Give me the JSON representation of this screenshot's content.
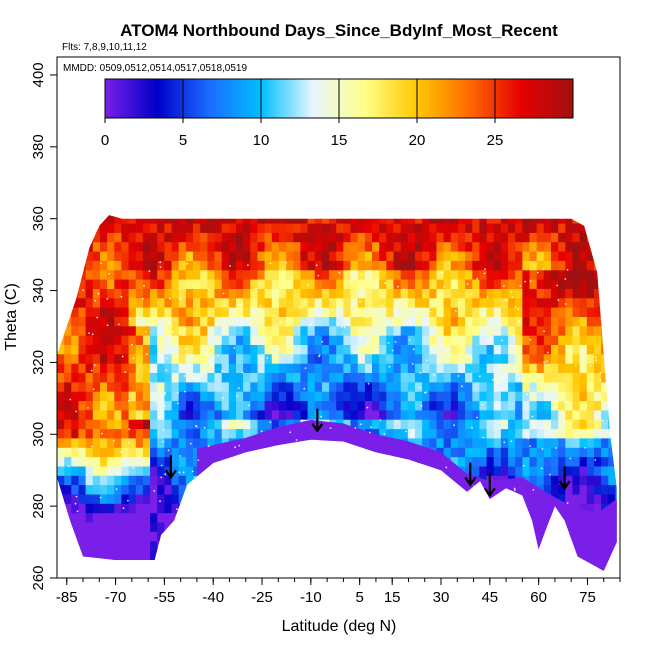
{
  "chart_data": {
    "type": "heatmap",
    "title": "ATOM4 Northbound Days_Since_BdyInf_Most_Recent",
    "subtitle": "Flts: 7,8,9,10,11,12",
    "annotation": "MMDD: 0509,0512,0514,0517,0518,0519",
    "xlabel": "Latitude (deg N)",
    "ylabel": "Theta (C)",
    "xlim": [
      -88,
      85
    ],
    "ylim": [
      260,
      405
    ],
    "x_ticks": [
      "-85",
      "-70",
      "-55",
      "-40",
      "-25",
      "-10",
      "5",
      "15",
      "30",
      "45",
      "60",
      "75"
    ],
    "y_ticks": [
      "260",
      "280",
      "300",
      "320",
      "340",
      "360",
      "380",
      "400"
    ],
    "colorbar": {
      "range": [
        0,
        30
      ],
      "ticks": [
        "0",
        "5",
        "10",
        "15",
        "20",
        "25"
      ],
      "colors": [
        "#7a1fe8",
        "#0000c8",
        "#1a6cff",
        "#00bfff",
        "#e8f6ff",
        "#ffff88",
        "#ffc800",
        "#ff6a00",
        "#e60000",
        "#a01010"
      ]
    },
    "arrows": [
      {
        "lat": -53,
        "theta": 288
      },
      {
        "lat": -8,
        "theta": 301
      },
      {
        "lat": 39,
        "theta": 286
      },
      {
        "lat": 45,
        "theta": 283
      },
      {
        "lat": 68,
        "theta": 285
      }
    ],
    "coverage_top": [
      [
        -88,
        322
      ],
      [
        -82,
        338
      ],
      [
        -78,
        352
      ],
      [
        -75,
        358
      ],
      [
        -72,
        361
      ],
      [
        -68,
        360
      ],
      [
        -60,
        360
      ],
      [
        -40,
        360
      ],
      [
        -20,
        360
      ],
      [
        0,
        360
      ],
      [
        20,
        360
      ],
      [
        40,
        360
      ],
      [
        60,
        360
      ],
      [
        70,
        360
      ],
      [
        74,
        358
      ],
      [
        78,
        345
      ],
      [
        80,
        322
      ],
      [
        82,
        300
      ],
      [
        84,
        285
      ]
    ],
    "coverage_bottom": [
      [
        -88,
        288
      ],
      [
        -84,
        276
      ],
      [
        -80,
        266
      ],
      [
        -70,
        265
      ],
      [
        -58,
        265
      ],
      [
        -56,
        272
      ],
      [
        -52,
        276
      ],
      [
        -48,
        286
      ],
      [
        -40,
        292
      ],
      [
        -30,
        295
      ],
      [
        -20,
        297
      ],
      [
        -10,
        298.5
      ],
      [
        0,
        298
      ],
      [
        10,
        295
      ],
      [
        20,
        293
      ],
      [
        30,
        290
      ],
      [
        38,
        284
      ],
      [
        42,
        287
      ],
      [
        45,
        282
      ],
      [
        50,
        285
      ],
      [
        55,
        283
      ],
      [
        58,
        276
      ],
      [
        60,
        268
      ],
      [
        62,
        273
      ],
      [
        65,
        280
      ],
      [
        68,
        276
      ],
      [
        72,
        266
      ],
      [
        76,
        264
      ],
      [
        80,
        262
      ],
      [
        84,
        270
      ]
    ],
    "purple_band_top": [
      [
        -45,
        296
      ],
      [
        -30,
        299
      ],
      [
        -20,
        302
      ],
      [
        -10,
        304
      ],
      [
        0,
        303
      ],
      [
        10,
        300
      ],
      [
        20,
        298
      ],
      [
        30,
        295
      ],
      [
        38,
        289
      ],
      [
        45,
        287
      ],
      [
        55,
        288
      ],
      [
        62,
        284
      ],
      [
        70,
        280
      ],
      [
        78,
        278
      ],
      [
        84,
        282
      ]
    ]
  }
}
